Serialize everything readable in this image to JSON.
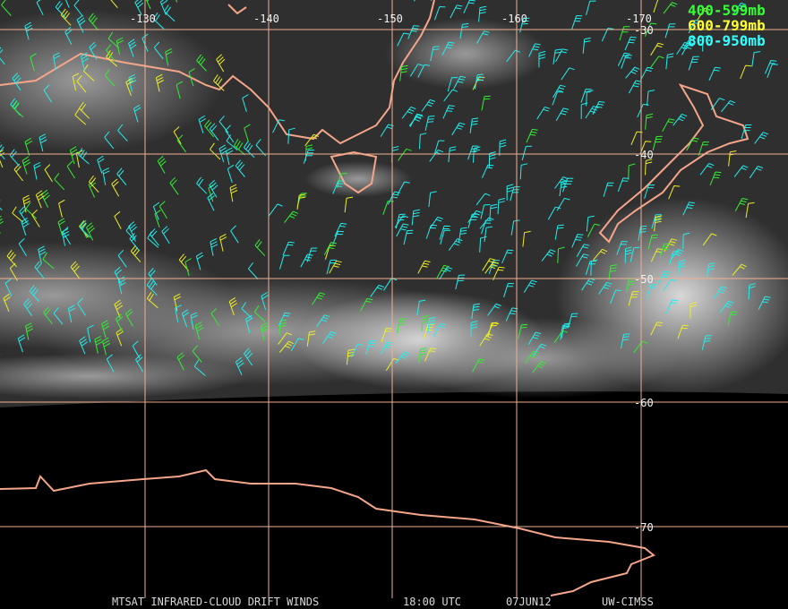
{
  "map": {
    "longitude_labels": [
      "-130",
      "-140",
      "-150",
      "-160",
      "-170"
    ],
    "latitude_labels": [
      "-30",
      "-40",
      "-50",
      "-60",
      "-70"
    ],
    "legend": [
      "400-599mb",
      "600-799mb",
      "800-950mb"
    ],
    "footer": [
      "MTSAT INFRARED-CLOUD DRIFT WINDS",
      "18:00 UTC",
      "07JUN12",
      "UW-CIMSS"
    ]
  }
}
